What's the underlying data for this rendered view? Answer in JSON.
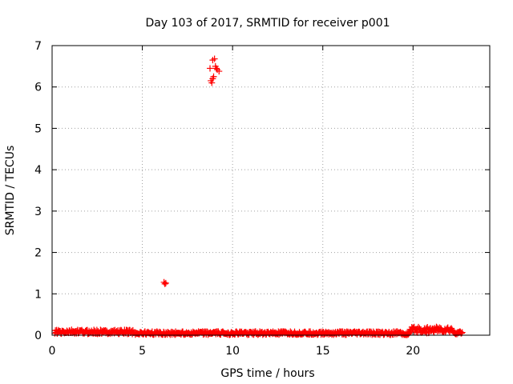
{
  "chart_data": {
    "type": "scatter",
    "title": "Day 103 of 2017, SRMTID for receiver p001",
    "xlabel": "GPS time / hours",
    "ylabel": "SRMTID / TECUs",
    "xlim": [
      0,
      24.25
    ],
    "ylim": [
      0,
      7
    ],
    "xticks": [
      0,
      5,
      10,
      15,
      20
    ],
    "yticks": [
      0,
      1,
      2,
      3,
      4,
      5,
      6,
      7
    ],
    "grid": true,
    "marker": "plus",
    "series_color": "#ff0000",
    "series": [
      {
        "name": "SRMTID",
        "baseline": {
          "x_start": 0.15,
          "x_end": 22.75,
          "step": 0.0333,
          "segments": [
            {
              "x": [
                0.15,
                0.6
              ],
              "y": [
                0.0,
                0.14
              ]
            },
            {
              "x": [
                0.6,
                4.5
              ],
              "y": [
                0.03,
                0.13
              ]
            },
            {
              "x": [
                4.5,
                19.3
              ],
              "y": [
                0.01,
                0.09
              ]
            },
            {
              "x": [
                19.3,
                19.8
              ],
              "y": [
                0.0,
                0.06
              ]
            },
            {
              "x": [
                19.8,
                22.2
              ],
              "y": [
                0.05,
                0.2
              ]
            },
            {
              "x": [
                22.2,
                22.75
              ],
              "y": [
                0.02,
                0.09
              ]
            }
          ]
        },
        "outliers": {
          "x": [
            6.2,
            6.25,
            6.3,
            8.75,
            8.8,
            8.85,
            8.9,
            8.9,
            8.95,
            9.0,
            9.05,
            9.1,
            9.15,
            9.25
          ],
          "y": [
            1.28,
            1.24,
            1.26,
            6.45,
            6.15,
            6.1,
            6.2,
            6.65,
            6.25,
            6.68,
            6.5,
            6.45,
            6.42,
            6.38
          ]
        }
      }
    ]
  }
}
